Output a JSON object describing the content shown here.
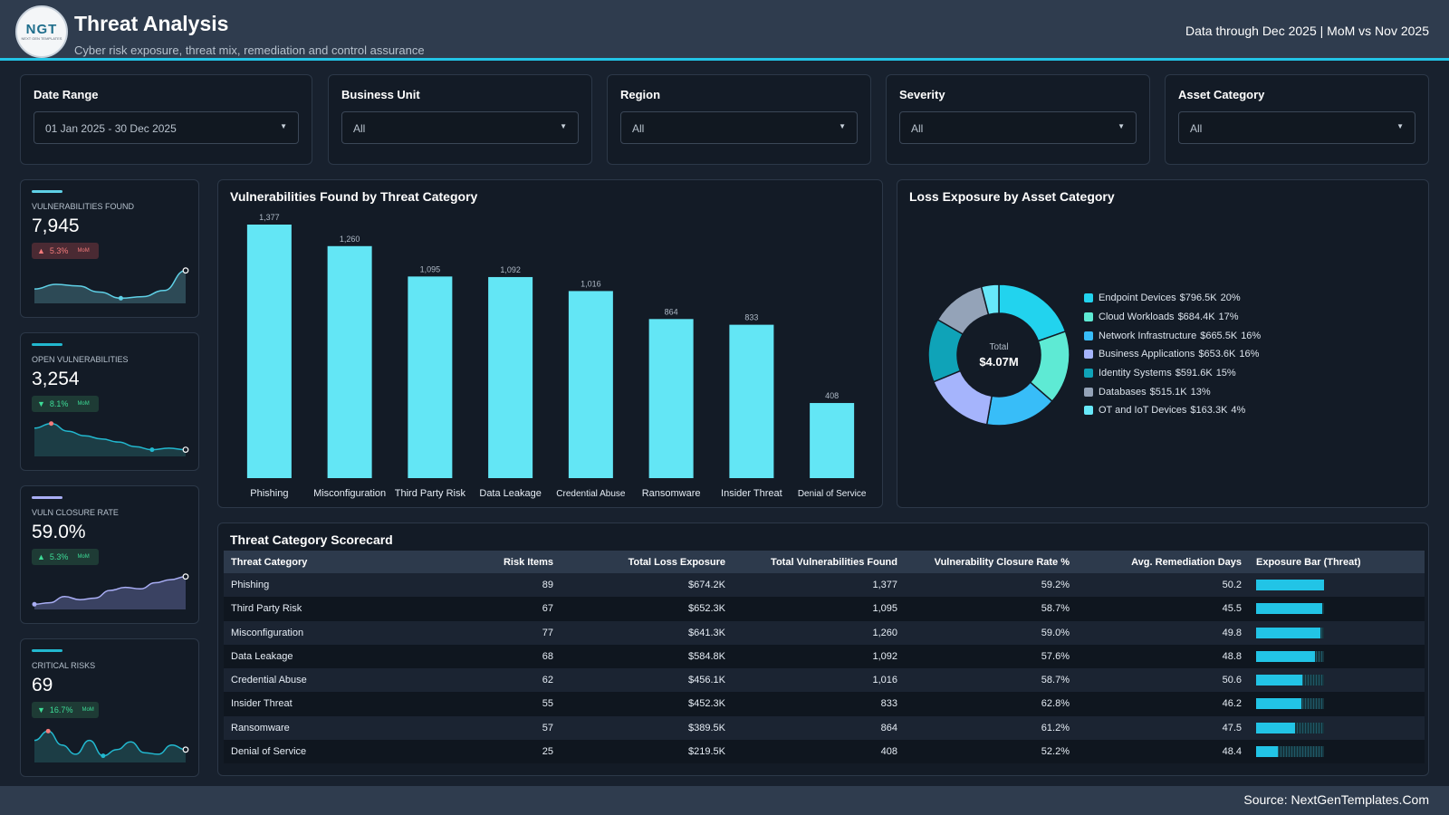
{
  "header": {
    "logo_text": "NGT",
    "logo_subtext": "NEXT GEN TEMPLATES",
    "title": "Threat Analysis",
    "subtitle": "Cyber risk exposure, threat mix, remediation and control assurance",
    "data_note": "Data through Dec 2025 | MoM vs Nov 2025"
  },
  "filters": [
    {
      "label": "Date Range",
      "value": "01 Jan 2025 - 30 Dec 2025"
    },
    {
      "label": "Business Unit",
      "value": "All"
    },
    {
      "label": "Region",
      "value": "All"
    },
    {
      "label": "Severity",
      "value": "All"
    },
    {
      "label": "Asset Category",
      "value": "All"
    }
  ],
  "kpis": [
    {
      "label": "VULNERABILITIES FOUND",
      "value": "7,945",
      "change": "5.3%",
      "direction": "up",
      "change_color": "#f47b7b",
      "badge_bg": "#4a2a33",
      "compare": "MoM",
      "accent": "#5fd0e6",
      "line_color": "#5fd0e6",
      "fill": "#2d4a56",
      "spark": [
        0.35,
        0.5,
        0.45,
        0.25,
        0.05,
        0.1,
        0.3,
        0.95
      ]
    },
    {
      "label": "OPEN VULNERABILITIES",
      "value": "3,254",
      "change": "8.1%",
      "direction": "down",
      "change_color": "#3ddc97",
      "badge_bg": "#1e3b35",
      "compare": "MoM",
      "accent": "#22b8cf",
      "line_color": "#22b8cf",
      "fill": "#1c3d45",
      "spark": [
        0.8,
        0.95,
        0.7,
        0.55,
        0.45,
        0.35,
        0.2,
        0.1,
        0.15,
        0.1
      ]
    },
    {
      "label": "VULN CLOSURE RATE",
      "value": "59.0%",
      "change": "5.3%",
      "direction": "up",
      "change_color": "#3ddc97",
      "badge_bg": "#1e3b35",
      "compare": "MoM",
      "accent": "#a9aef5",
      "line_color": "#a9aef5",
      "fill": "#3a4262",
      "spark": [
        0.05,
        0.1,
        0.3,
        0.2,
        0.25,
        0.5,
        0.6,
        0.55,
        0.75,
        0.85,
        0.95
      ]
    },
    {
      "label": "CRITICAL RISKS",
      "value": "69",
      "change": "16.7%",
      "direction": "down",
      "change_color": "#3ddc97",
      "badge_bg": "#1e3b35",
      "compare": "MoM",
      "accent": "#22b8cf",
      "line_color": "#22b8cf",
      "fill": "#1c3d45",
      "spark": [
        0.6,
        0.9,
        0.45,
        0.15,
        0.6,
        0.1,
        0.3,
        0.55,
        0.2,
        0.15,
        0.45,
        0.3
      ]
    }
  ],
  "bar_panel": {
    "title": "Vulnerabilities Found by Threat Category",
    "bar_color": "#63e6f5"
  },
  "donut_panel": {
    "title": "Loss Exposure by Asset Category",
    "center_label": "Total",
    "center_value": "$4.07M"
  },
  "table_panel": {
    "title": "Threat Category Scorecard",
    "headers": [
      "Threat Category",
      "Risk Items",
      "Total Loss Exposure",
      "Total Vulnerabilities Found",
      "Vulnerability Closure Rate %",
      "Avg. Remediation Days",
      "Exposure Bar (Threat)"
    ],
    "rows": [
      {
        "category": "Phishing",
        "risk_items": "89",
        "loss": "$674.2K",
        "vulns": "1,377",
        "closure": "59.2%",
        "days": "50.2",
        "exposure": 674.2
      },
      {
        "category": "Third Party Risk",
        "risk_items": "67",
        "loss": "$652.3K",
        "vulns": "1,095",
        "closure": "58.7%",
        "days": "45.5",
        "exposure": 652.3
      },
      {
        "category": "Misconfiguration",
        "risk_items": "77",
        "loss": "$641.3K",
        "vulns": "1,260",
        "closure": "59.0%",
        "days": "49.8",
        "exposure": 641.3
      },
      {
        "category": "Data Leakage",
        "risk_items": "68",
        "loss": "$584.8K",
        "vulns": "1,092",
        "closure": "57.6%",
        "days": "48.8",
        "exposure": 584.8
      },
      {
        "category": "Credential Abuse",
        "risk_items": "62",
        "loss": "$456.1K",
        "vulns": "1,016",
        "closure": "58.7%",
        "days": "50.6",
        "exposure": 456.1
      },
      {
        "category": "Insider Threat",
        "risk_items": "55",
        "loss": "$452.3K",
        "vulns": "833",
        "closure": "62.8%",
        "days": "46.2",
        "exposure": 452.3
      },
      {
        "category": "Ransomware",
        "risk_items": "57",
        "loss": "$389.5K",
        "vulns": "864",
        "closure": "61.2%",
        "days": "47.5",
        "exposure": 389.5
      },
      {
        "category": "Denial of Service",
        "risk_items": "25",
        "loss": "$219.5K",
        "vulns": "408",
        "closure": "52.2%",
        "days": "48.4",
        "exposure": 219.5
      }
    ]
  },
  "footer": {
    "source": "Source: NextGenTemplates.Com"
  },
  "chart_data": [
    {
      "type": "bar",
      "title": "Vulnerabilities Found by Threat Category",
      "categories": [
        "Phishing",
        "Misconfiguration",
        "Third Party Risk",
        "Data Leakage",
        "Credential Abuse",
        "Ransomware",
        "Insider Threat",
        "Denial of Service"
      ],
      "values": [
        1377,
        1260,
        1095,
        1092,
        1016,
        864,
        833,
        408
      ],
      "value_labels": [
        "1,377",
        "1,260",
        "1,095",
        "1,092",
        "1,016",
        "864",
        "833",
        "408"
      ],
      "ylim": [
        0,
        1377
      ]
    },
    {
      "type": "pie",
      "title": "Loss Exposure by Asset Category",
      "slices": [
        {
          "name": "Endpoint Devices",
          "value": 796.5,
          "value_label": "$796.5K",
          "pct": "20%",
          "color": "#22d3ee"
        },
        {
          "name": "Cloud Workloads",
          "value": 684.4,
          "value_label": "$684.4K",
          "pct": "17%",
          "color": "#5eead4"
        },
        {
          "name": "Network Infrastructure",
          "value": 665.5,
          "value_label": "$665.5K",
          "pct": "16%",
          "color": "#38bdf8"
        },
        {
          "name": "Business Applications",
          "value": 653.6,
          "value_label": "$653.6K",
          "pct": "16%",
          "color": "#a5b4fc"
        },
        {
          "name": "Identity Systems",
          "value": 591.6,
          "value_label": "$591.6K",
          "pct": "15%",
          "color": "#0fa3b8"
        },
        {
          "name": "Databases",
          "value": 515.1,
          "value_label": "$515.1K",
          "pct": "13%",
          "color": "#94a3b8"
        },
        {
          "name": "OT and IoT Devices",
          "value": 163.3,
          "value_label": "$163.3K",
          "pct": "4%",
          "color": "#67e8f9"
        }
      ]
    }
  ]
}
